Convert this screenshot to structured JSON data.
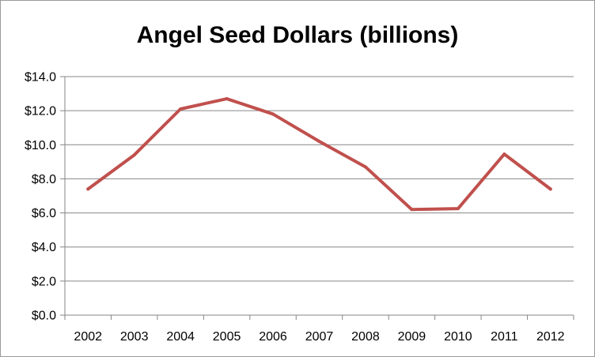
{
  "chart_data": {
    "type": "line",
    "title": "Angel Seed Dollars (billions)",
    "xlabel": "",
    "ylabel": "",
    "categories": [
      "2002",
      "2003",
      "2004",
      "2005",
      "2006",
      "2007",
      "2008",
      "2009",
      "2010",
      "2011",
      "2012"
    ],
    "series": [
      {
        "values": [
          7.4,
          9.4,
          12.1,
          12.7,
          11.8,
          10.2,
          8.7,
          6.2,
          6.25,
          9.45,
          7.4
        ],
        "color": "#c0504d"
      }
    ],
    "ylim": [
      0,
      14
    ],
    "yticks": [
      0,
      2,
      4,
      6,
      8,
      10,
      12,
      14
    ],
    "ytick_labels": [
      "$0.0",
      "$2.0",
      "$4.0",
      "$6.0",
      "$8.0",
      "$10.0",
      "$12.0",
      "$14.0"
    ],
    "grid": true,
    "legend": "none",
    "colors": {
      "gridline": "#868686",
      "line": "#c0504d"
    }
  }
}
